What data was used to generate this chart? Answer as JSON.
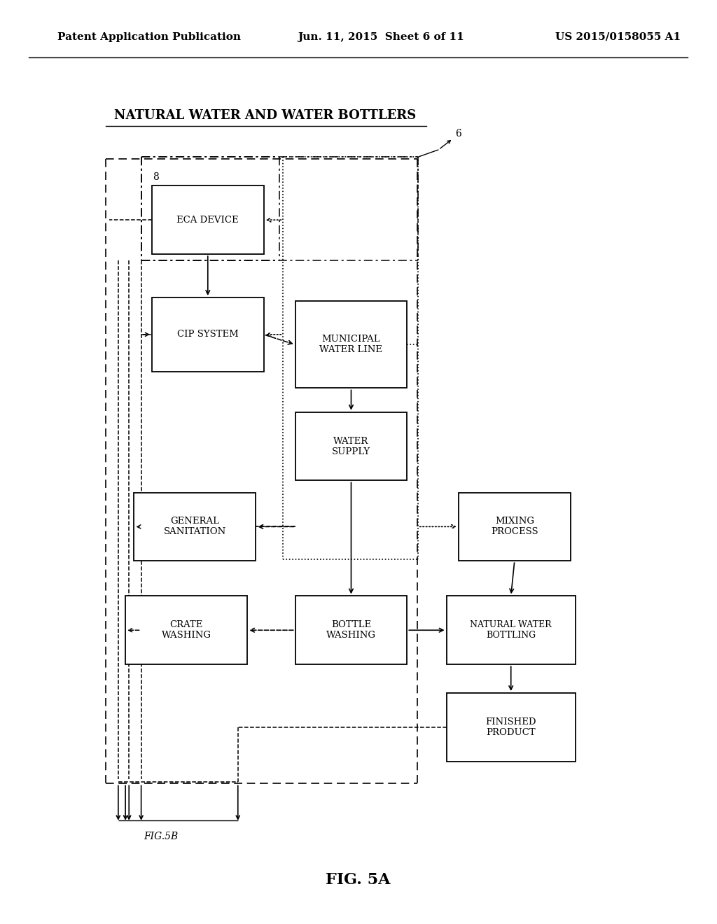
{
  "bg_color": "#ffffff",
  "page_header_left": "Patent Application Publication",
  "page_header_center": "Jun. 11, 2015  Sheet 6 of 11",
  "page_header_right": "US 2015/0158055 A1",
  "title": "NATURAL WATER AND WATER BOTTLERS",
  "fig_label": "FIG. 5A",
  "fig5b_label": "FIG.5B",
  "label_6": "6",
  "label_8": "8"
}
